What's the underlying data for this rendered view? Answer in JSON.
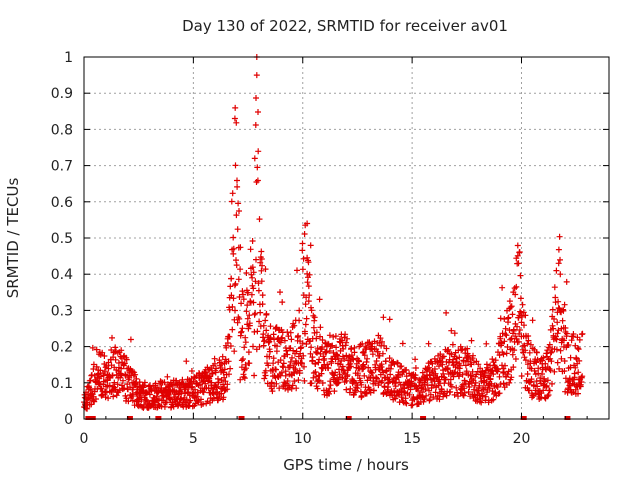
{
  "chart_data": {
    "type": "scatter",
    "title": "Day 130 of 2022, SRMTID for receiver av01",
    "xlabel": "GPS time / hours",
    "ylabel": "SRMTID / TECUs",
    "xlim": [
      0,
      24
    ],
    "ylim": [
      0,
      1
    ],
    "x_ticks": [
      0,
      5,
      10,
      15,
      20
    ],
    "x_tick_labels": [
      "0",
      "5",
      "10",
      "15",
      "20"
    ],
    "y_ticks": [
      0,
      0.1,
      0.2,
      0.3,
      0.4,
      0.5,
      0.6,
      0.7,
      0.8,
      0.9,
      1
    ],
    "y_tick_labels": [
      "0",
      "0.1",
      "0.2",
      "0.3",
      "0.4",
      "0.5",
      "0.6",
      "0.7",
      "0.8",
      "0.9",
      "1"
    ],
    "grid": true,
    "marker": "+",
    "color": "#e00000",
    "data_span_hours": [
      0,
      22.8
    ],
    "notable_peaks": [
      {
        "x": 6.9,
        "y": 0.83
      },
      {
        "x": 7.9,
        "y": 0.95
      },
      {
        "x": 10.2,
        "y": 0.54
      },
      {
        "x": 19.9,
        "y": 0.46
      },
      {
        "x": 21.7,
        "y": 0.43
      }
    ],
    "envelope": [
      [
        0.0,
        0.04
      ],
      [
        0.4,
        0.09
      ],
      [
        0.6,
        0.13
      ],
      [
        1.0,
        0.11
      ],
      [
        1.5,
        0.14
      ],
      [
        2.2,
        0.09
      ],
      [
        2.5,
        0.07
      ],
      [
        3.0,
        0.065
      ],
      [
        4.0,
        0.07
      ],
      [
        5.0,
        0.075
      ],
      [
        5.5,
        0.09
      ],
      [
        6.0,
        0.1
      ],
      [
        6.5,
        0.12
      ],
      [
        6.8,
        0.2
      ],
      [
        7.2,
        0.22
      ],
      [
        7.6,
        0.26
      ],
      [
        8.0,
        0.22
      ],
      [
        8.5,
        0.17
      ],
      [
        9.0,
        0.16
      ],
      [
        9.5,
        0.17
      ],
      [
        10.0,
        0.2
      ],
      [
        10.5,
        0.18
      ],
      [
        11.0,
        0.14
      ],
      [
        11.5,
        0.16
      ],
      [
        12.0,
        0.15
      ],
      [
        12.5,
        0.13
      ],
      [
        13.0,
        0.14
      ],
      [
        13.5,
        0.15
      ],
      [
        14.0,
        0.12
      ],
      [
        14.5,
        0.1
      ],
      [
        15.0,
        0.08
      ],
      [
        15.5,
        0.09
      ],
      [
        16.0,
        0.11
      ],
      [
        16.5,
        0.13
      ],
      [
        17.0,
        0.14
      ],
      [
        17.5,
        0.13
      ],
      [
        18.0,
        0.1
      ],
      [
        18.5,
        0.09
      ],
      [
        19.0,
        0.15
      ],
      [
        19.5,
        0.22
      ],
      [
        20.0,
        0.18
      ],
      [
        20.5,
        0.13
      ],
      [
        21.0,
        0.11
      ],
      [
        21.5,
        0.18
      ],
      [
        22.0,
        0.16
      ],
      [
        22.5,
        0.15
      ],
      [
        22.8,
        0.16
      ]
    ],
    "data_gaps_at_zero_hours": [
      0.2,
      0.4,
      2.1,
      3.4,
      7.2,
      12.1,
      15.5,
      20.1,
      22.1
    ]
  }
}
